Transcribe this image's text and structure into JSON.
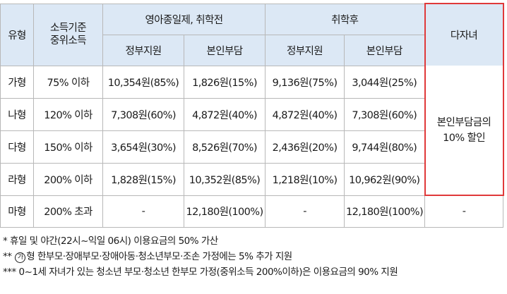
{
  "header": {
    "type": "유형",
    "income_line1": "소득기준",
    "income_line2": "중위소득",
    "group_before": "영아종일제, 취학전",
    "group_after": "취학후",
    "multi": "다자녀",
    "gov": "정부지원",
    "self": "본인부담"
  },
  "rows": [
    {
      "type": "가형",
      "income": "75% 이하",
      "b_gov": "10,354원(85%)",
      "b_self": "1,826원(15%)",
      "a_gov": "9,136원(75%)",
      "a_self": "3,044원(25%)"
    },
    {
      "type": "나형",
      "income": "120% 이하",
      "b_gov": "7,308원(60%)",
      "b_self": "4,872원(40%)",
      "a_gov": "4,872원(40%)",
      "a_self": "7,308원(60%)"
    },
    {
      "type": "다형",
      "income": "150% 이하",
      "b_gov": "3,654원(30%)",
      "b_self": "8,526원(70%)",
      "a_gov": "2,436원(20%)",
      "a_self": "9,744원(80%)"
    },
    {
      "type": "라형",
      "income": "200% 이하",
      "b_gov": "1,828원(15%)",
      "b_self": "10,352원(85%)",
      "a_gov": "1,218원(10%)",
      "a_self": "10,962원(90%)"
    },
    {
      "type": "마형",
      "income": "200% 초과",
      "b_gov": "-",
      "b_self": "12,180원(100%)",
      "a_gov": "-",
      "a_self": "12,180원(100%)",
      "multi": "-"
    }
  ],
  "multi_discount_line1": "본인부담금의",
  "multi_discount_line2": "10% 할인",
  "notes": {
    "n1_mark": "*",
    "n1": "휴일 및 야간(22시~익일 06시) 이용요금의 50% 가산",
    "n2_mark": "**",
    "n2_circled": "가",
    "n2": "형 한부모·장애부모·장애아동·청소년부모·조손 가정에는 5% 추가 지원",
    "n3_mark": "***",
    "n3": "0~1세 자녀가 있는 청소년 부모·청소년 한부모 가정(중위소득 200%이하)은 이용요금의 90% 지원"
  }
}
